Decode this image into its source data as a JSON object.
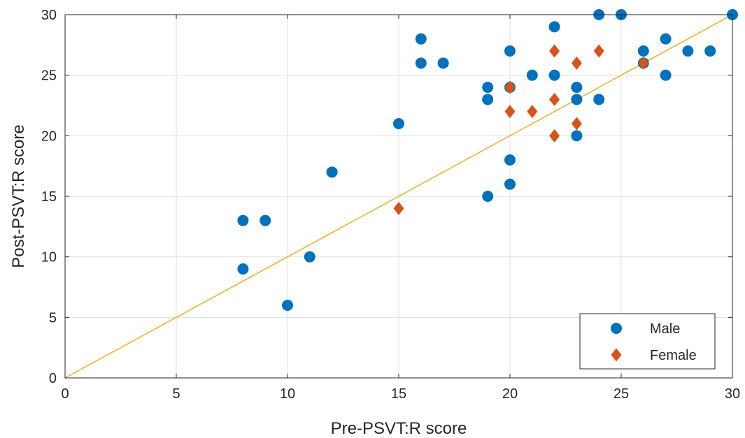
{
  "chart_data": {
    "type": "scatter",
    "xlabel": "Pre-PSVT:R score",
    "ylabel": "Post-PSVT:R score",
    "xlim": [
      0,
      30
    ],
    "ylim": [
      0,
      30
    ],
    "xticks": [
      0,
      5,
      10,
      15,
      20,
      25,
      30
    ],
    "yticks": [
      0,
      5,
      10,
      15,
      20,
      25,
      30
    ],
    "grid": true,
    "legend_position": "bottom-right",
    "reference_line": {
      "points": [
        [
          0,
          0
        ],
        [
          30,
          30
        ]
      ],
      "color": "#EDB120"
    },
    "series": [
      {
        "name": "Male",
        "marker": "circle",
        "color": "#0072BD",
        "points": [
          [
            8,
            13
          ],
          [
            8,
            9
          ],
          [
            9,
            13
          ],
          [
            10,
            6
          ],
          [
            11,
            10
          ],
          [
            12,
            17
          ],
          [
            15,
            21
          ],
          [
            16,
            28
          ],
          [
            16,
            26
          ],
          [
            17,
            26
          ],
          [
            19,
            24
          ],
          [
            19,
            23
          ],
          [
            19,
            15
          ],
          [
            20,
            27
          ],
          [
            20,
            24
          ],
          [
            20,
            18
          ],
          [
            20,
            16
          ],
          [
            21,
            25
          ],
          [
            22,
            29
          ],
          [
            22,
            25
          ],
          [
            23,
            24
          ],
          [
            23,
            23
          ],
          [
            23,
            20
          ],
          [
            24,
            30
          ],
          [
            24,
            23
          ],
          [
            25,
            30
          ],
          [
            26,
            27
          ],
          [
            26,
            26
          ],
          [
            27,
            28
          ],
          [
            27,
            25
          ],
          [
            28,
            27
          ],
          [
            29,
            27
          ],
          [
            30,
            30
          ]
        ]
      },
      {
        "name": "Female",
        "marker": "diamond",
        "color": "#D95319",
        "points": [
          [
            15,
            14
          ],
          [
            20,
            24
          ],
          [
            20,
            22
          ],
          [
            21,
            22
          ],
          [
            22,
            27
          ],
          [
            22,
            23
          ],
          [
            22,
            20
          ],
          [
            23,
            26
          ],
          [
            23,
            21
          ],
          [
            24,
            27
          ],
          [
            26,
            26
          ]
        ]
      }
    ]
  }
}
